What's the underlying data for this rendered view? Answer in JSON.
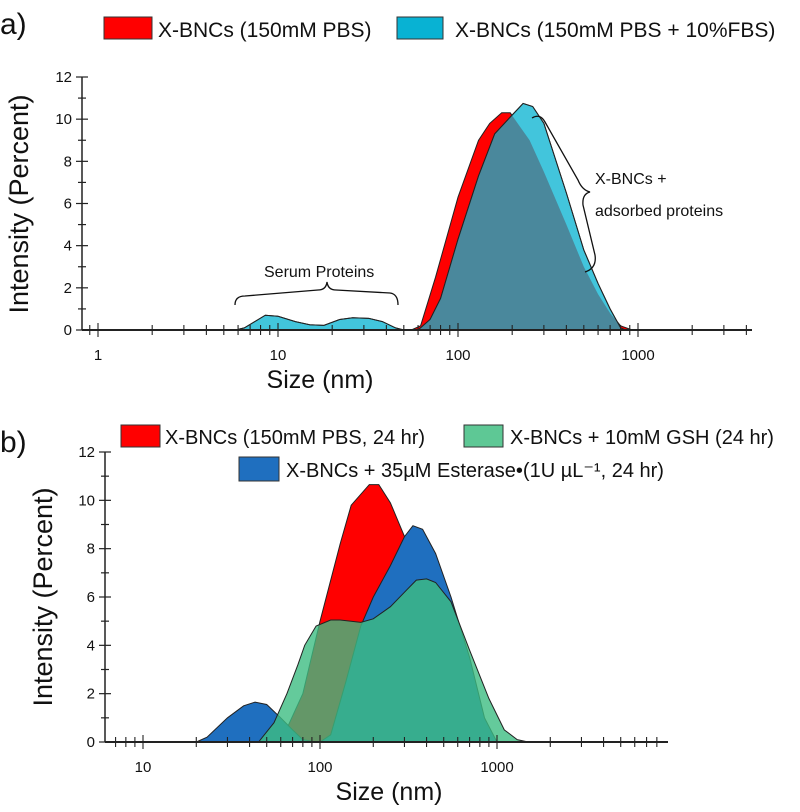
{
  "chart_data": [
    {
      "type": "area",
      "panel_label": "a)",
      "xscale": "log",
      "xlabel": "Size (nm)",
      "ylabel": "Intensity (Percent)",
      "xlim": [
        0.85,
        4300
      ],
      "ylim": [
        0,
        12
      ],
      "xticks": [
        "1",
        "10",
        "100",
        "1000"
      ],
      "yticks": [
        "0",
        "2",
        "4",
        "6",
        "8",
        "10",
        "12"
      ],
      "legend": [
        "X-BNCs (150mM PBS)",
        "X-BNCs (150mM PBS + 10%FBS)"
      ],
      "annotations": {
        "serum": "Serum Proteins",
        "adsorbed_1": "X-BNCs +",
        "adsorbed_2": "adsorbed proteins"
      },
      "series": [
        {
          "name": "X-BNCs (150mM PBS)",
          "color": "#ff0000",
          "x": [
            55,
            62,
            75,
            100,
            130,
            150,
            175,
            195,
            250,
            300,
            400,
            500,
            600,
            700,
            800,
            930
          ],
          "y": [
            0,
            0.2,
            2.5,
            6.3,
            9.0,
            9.8,
            10.3,
            10.3,
            9.0,
            7.5,
            5.0,
            3.0,
            1.7,
            0.8,
            0.2,
            0
          ]
        },
        {
          "name": "X-BNCs (150mM PBS + 10%FBS)",
          "color": "#42c5dc",
          "x": [
            5.8,
            6.5,
            8.5,
            10,
            12.5,
            15,
            18,
            22,
            26,
            32,
            38,
            45,
            50,
            60,
            70,
            80,
            100,
            130,
            160,
            200,
            230,
            260,
            300,
            400,
            500,
            600,
            700,
            800,
            850
          ],
          "y": [
            0,
            0.1,
            0.7,
            0.65,
            0.4,
            0.25,
            0.22,
            0.5,
            0.58,
            0.55,
            0.4,
            0.1,
            0,
            0,
            0.5,
            1.5,
            4.3,
            7.3,
            9.3,
            10.2,
            10.75,
            10.6,
            9.8,
            6.5,
            3.8,
            2.2,
            1.0,
            0.1,
            0
          ]
        }
      ]
    },
    {
      "type": "area",
      "panel_label": "b)",
      "xscale": "log",
      "xlabel": "Size (nm)",
      "ylabel": "Intensity (Percent)",
      "xlim": [
        6.1,
        8000
      ],
      "ylim": [
        0,
        12
      ],
      "xticks": [
        "10",
        "100",
        "1000"
      ],
      "yticks": [
        "0",
        "2",
        "4",
        "6",
        "8",
        "10",
        "12"
      ],
      "legend": [
        "X-BNCs (150mM PBS, 24 hr)",
        "X-BNCs + 10mM GSH (24 hr)",
        "X-BNCs + 35µM Esterase•(1U  µL⁻¹, 24 hr)"
      ],
      "series": [
        {
          "name": "X-BNCs (150mM PBS, 24 hr)",
          "color": "#ff0000",
          "x": [
            60,
            80,
            100,
            130,
            150,
            190,
            215,
            250,
            300,
            350,
            400,
            500,
            700,
            900,
            1000
          ],
          "y": [
            0,
            2,
            5,
            8.2,
            9.8,
            10.65,
            10.65,
            9.9,
            8.5,
            7,
            5.5,
            3.5,
            1.5,
            0.3,
            0
          ]
        },
        {
          "name": "X-BNCs + 35µM Esterase•(1U  µL⁻¹, 24 hr)",
          "color": "#1f6fbf",
          "x": [
            20,
            23,
            30,
            37,
            43,
            50,
            60,
            70,
            80,
            95,
            100,
            115,
            140,
            170,
            200,
            250,
            300,
            335,
            380,
            450,
            550,
            700,
            850,
            1000
          ],
          "y": [
            0,
            0.2,
            1,
            1.5,
            1.65,
            1.55,
            1,
            0.5,
            0.1,
            0,
            0,
            0.3,
            2.5,
            4.8,
            6,
            7.3,
            8.5,
            8.95,
            8.8,
            7.8,
            6,
            3.5,
            1,
            0
          ]
        },
        {
          "name": "X-BNCs + 10mM GSH (24 hr)",
          "color": "#3dbd82",
          "x": [
            45,
            55,
            65,
            75,
            82,
            95,
            115,
            130,
            170,
            200,
            250,
            300,
            350,
            400,
            450,
            550,
            700,
            900,
            1100,
            1300,
            1500
          ],
          "y": [
            0,
            0.8,
            2,
            3.2,
            4,
            4.8,
            5.05,
            5.05,
            4.95,
            5.1,
            5.6,
            6.2,
            6.7,
            6.75,
            6.6,
            5.8,
            3.8,
            1.8,
            0.5,
            0.1,
            0
          ]
        }
      ]
    }
  ]
}
